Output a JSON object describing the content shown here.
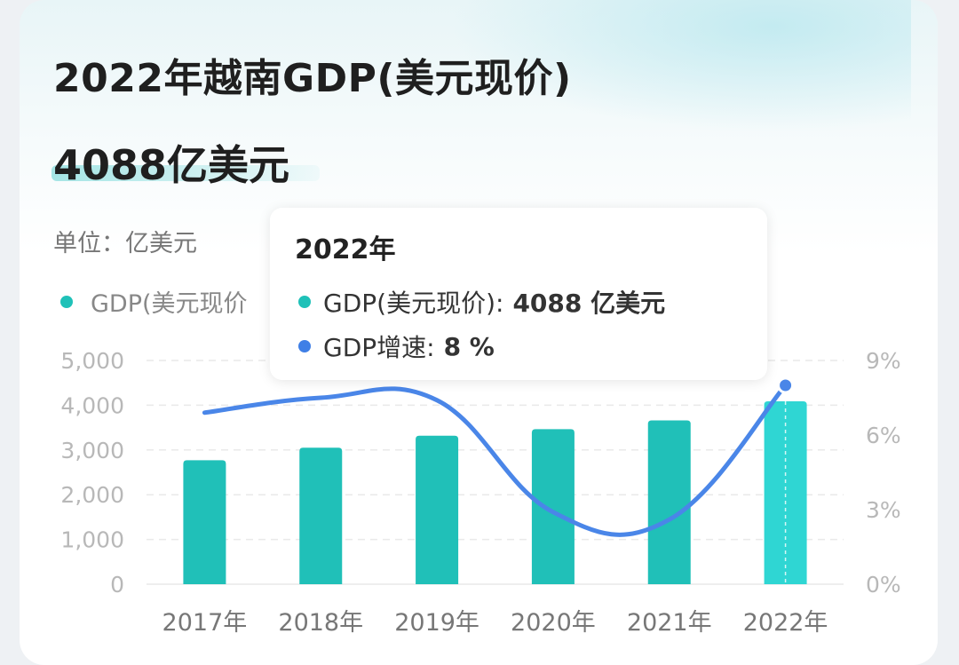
{
  "header": {
    "title": "2022年越南GDP(美元现价)",
    "big_value": "4088亿美元",
    "unit": "单位：亿美元"
  },
  "legend": {
    "gdp_label": "GDP(美元现价"
  },
  "tooltip": {
    "year": "2022年",
    "gdp_label": "GDP(美元现价):",
    "gdp_value": "4088 亿美元",
    "growth_label": "GDP增速:",
    "growth_value": "8 %"
  },
  "colors": {
    "bar": "#20c0b8",
    "bar_highlight": "#2fd6d3",
    "line": "#4a86e8",
    "axis_text": "#b8b8b8",
    "tick_text": "#777777"
  },
  "chart_data": {
    "type": "bar",
    "categories": [
      "2017年",
      "2018年",
      "2019年",
      "2020年",
      "2021年",
      "2022年"
    ],
    "series": [
      {
        "name": "GDP(美元现价)",
        "type": "bar",
        "axis": "left",
        "values": [
          2771,
          3050,
          3319,
          3466,
          3661,
          4088
        ]
      },
      {
        "name": "GDP增速",
        "type": "line",
        "axis": "right",
        "values": [
          6.9,
          7.5,
          7.4,
          2.9,
          2.6,
          8.0
        ]
      }
    ],
    "y_left": {
      "ticks": [
        "0",
        "1,000",
        "2,000",
        "3,000",
        "4,000",
        "5,000"
      ],
      "ylim": [
        0,
        5000
      ]
    },
    "y_right": {
      "ticks": [
        "0%",
        "3%",
        "6%",
        "9%"
      ],
      "ylim": [
        0,
        9
      ]
    },
    "grid": true
  }
}
